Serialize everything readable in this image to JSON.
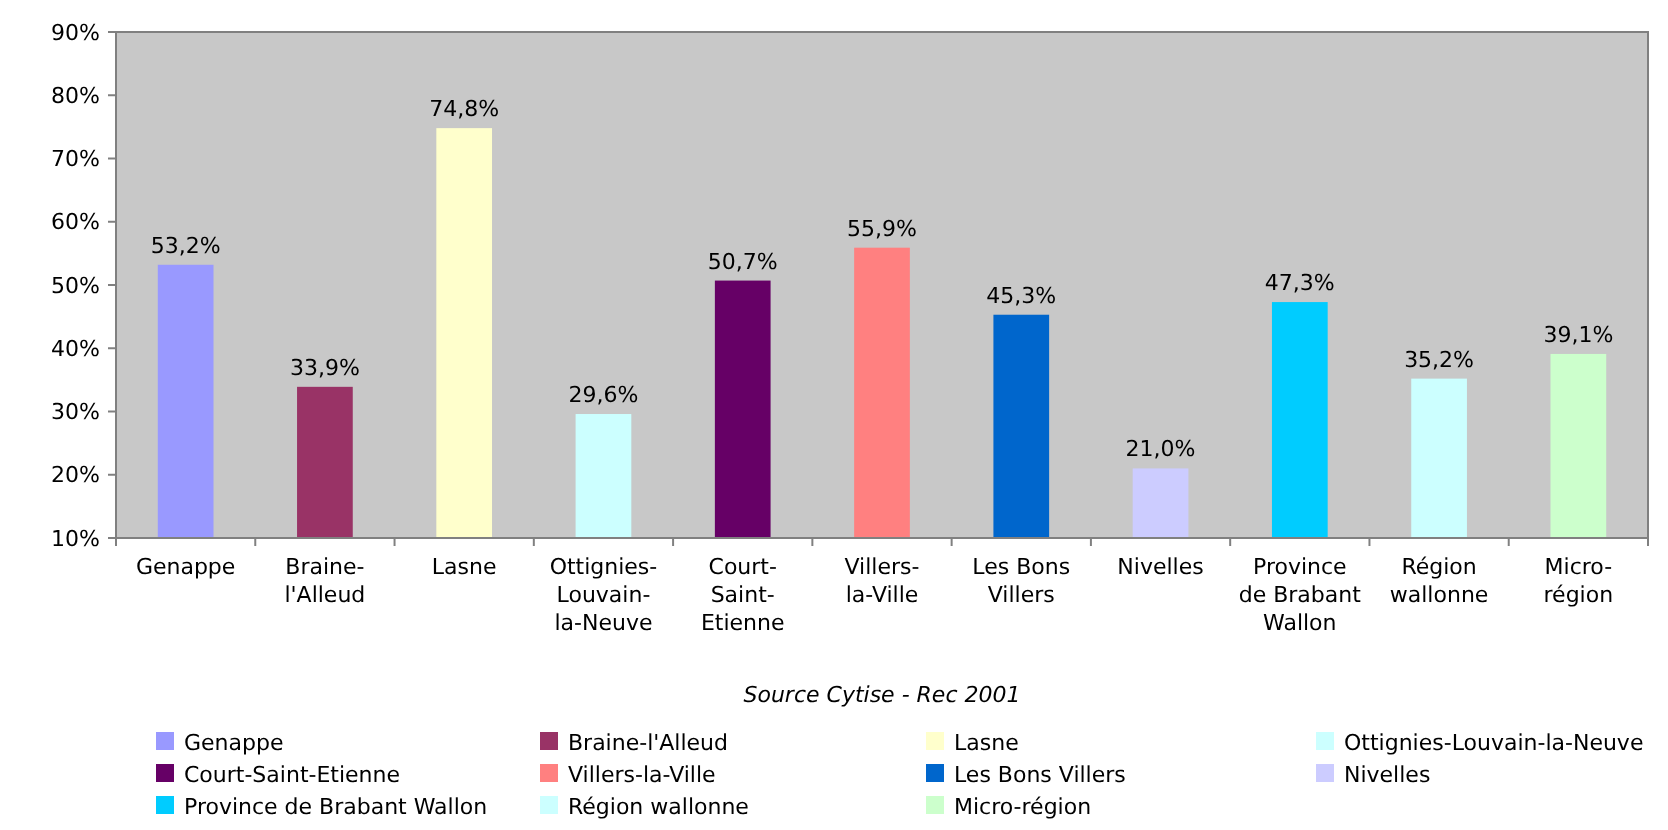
{
  "chart_data": {
    "type": "bar",
    "categories": [
      "Genappe",
      "Braine-l'Alleud",
      "Lasne",
      "Ottignies-Louvain-la-Neuve",
      "Court-Saint-Etienne",
      "Villers-la-Ville",
      "Les Bons Villers",
      "Nivelles",
      "Province de Brabant Wallon",
      "Région wallonne",
      "Micro-région"
    ],
    "series": [
      {
        "name": "Genappe",
        "color": "#9999ff",
        "values": [
          53.2,
          null,
          null,
          null,
          null,
          null,
          null,
          null,
          null,
          null,
          null
        ],
        "value_labels": [
          "53,2%",
          null,
          null,
          null,
          null,
          null,
          null,
          null,
          null,
          null,
          null
        ]
      },
      {
        "name": "Braine-l'Alleud",
        "color": "#993366",
        "values": [
          null,
          33.9,
          null,
          null,
          null,
          null,
          null,
          null,
          null,
          null,
          null
        ],
        "value_labels": [
          null,
          "33,9%",
          null,
          null,
          null,
          null,
          null,
          null,
          null,
          null,
          null
        ]
      },
      {
        "name": "Lasne",
        "color": "#ffffcc",
        "values": [
          null,
          null,
          74.8,
          null,
          null,
          null,
          null,
          null,
          null,
          null,
          null
        ],
        "value_labels": [
          null,
          null,
          "74,8%",
          null,
          null,
          null,
          null,
          null,
          null,
          null,
          null
        ]
      },
      {
        "name": "Ottignies-Louvain-la-Neuve",
        "color": "#ccffff",
        "values": [
          null,
          null,
          null,
          29.6,
          null,
          null,
          null,
          null,
          null,
          null,
          null
        ],
        "value_labels": [
          null,
          null,
          null,
          "29,6%",
          null,
          null,
          null,
          null,
          null,
          null,
          null
        ]
      },
      {
        "name": "Court-Saint-Etienne",
        "color": "#660066",
        "values": [
          null,
          null,
          null,
          null,
          50.7,
          null,
          null,
          null,
          null,
          null,
          null
        ],
        "value_labels": [
          null,
          null,
          null,
          null,
          "50,7%",
          null,
          null,
          null,
          null,
          null,
          null
        ]
      },
      {
        "name": "Villers-la-Ville",
        "color": "#ff8080",
        "values": [
          null,
          null,
          null,
          null,
          null,
          55.9,
          null,
          null,
          null,
          null,
          null
        ],
        "value_labels": [
          null,
          null,
          null,
          null,
          null,
          "55,9%",
          null,
          null,
          null,
          null,
          null
        ]
      },
      {
        "name": "Les Bons Villers",
        "color": "#0066cc",
        "values": [
          null,
          null,
          null,
          null,
          null,
          null,
          45.3,
          null,
          null,
          null,
          null
        ],
        "value_labels": [
          null,
          null,
          null,
          null,
          null,
          null,
          "45,3%",
          null,
          null,
          null,
          null
        ]
      },
      {
        "name": "Nivelles",
        "color": "#ccccff",
        "values": [
          null,
          null,
          null,
          null,
          null,
          null,
          null,
          21.0,
          null,
          null,
          null
        ],
        "value_labels": [
          null,
          null,
          null,
          null,
          null,
          null,
          null,
          "21,0%",
          null,
          null,
          null
        ]
      },
      {
        "name": "Province de Brabant Wallon",
        "color": "#00ccff",
        "values": [
          null,
          null,
          null,
          null,
          null,
          null,
          null,
          null,
          47.3,
          null,
          null
        ],
        "value_labels": [
          null,
          null,
          null,
          null,
          null,
          null,
          null,
          null,
          "47,3%",
          null,
          null
        ]
      },
      {
        "name": "Région wallonne",
        "color": "#ccffff",
        "values": [
          null,
          null,
          null,
          null,
          null,
          null,
          null,
          null,
          null,
          35.2,
          null
        ],
        "value_labels": [
          null,
          null,
          null,
          null,
          null,
          null,
          null,
          null,
          null,
          "35,2%",
          null
        ]
      },
      {
        "name": "Micro-région",
        "color": "#ccffcc",
        "values": [
          null,
          null,
          null,
          null,
          null,
          null,
          null,
          null,
          null,
          null,
          39.1
        ],
        "value_labels": [
          null,
          null,
          null,
          null,
          null,
          null,
          null,
          null,
          null,
          null,
          "39,1%"
        ]
      }
    ],
    "ylim": [
      10,
      90
    ],
    "yticks": [
      {
        "value": 10,
        "label": "10%"
      },
      {
        "value": 20,
        "label": "20%"
      },
      {
        "value": 30,
        "label": "30%"
      },
      {
        "value": 40,
        "label": "40%"
      },
      {
        "value": 50,
        "label": "50%"
      },
      {
        "value": 60,
        "label": "60%"
      },
      {
        "value": 70,
        "label": "70%"
      },
      {
        "value": 80,
        "label": "80%"
      },
      {
        "value": 90,
        "label": "90%"
      }
    ],
    "grid": false,
    "legend": "bottom",
    "annotations": [
      "Source Cytise - Rec 2001"
    ]
  }
}
